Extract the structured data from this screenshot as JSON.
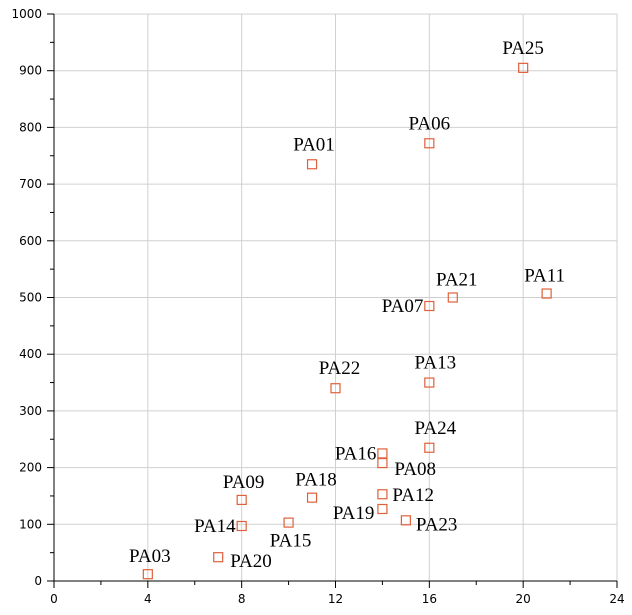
{
  "chart_data": {
    "type": "scatter",
    "title": "",
    "xlabel": "",
    "ylabel": "",
    "xlim": [
      0,
      24
    ],
    "ylim": [
      0,
      1000
    ],
    "x_ticks": [
      "0",
      "4",
      "8",
      "12",
      "16",
      "20",
      "24"
    ],
    "y_ticks": [
      "0",
      "100",
      "200",
      "300",
      "400",
      "500",
      "600",
      "700",
      "800",
      "900",
      "1000"
    ],
    "grid": true,
    "marker": "open-square",
    "marker_color": "#e0603a",
    "points": [
      {
        "label": "PA25",
        "x": 20,
        "y": 905
      },
      {
        "label": "PA06",
        "x": 16,
        "y": 772
      },
      {
        "label": "PA01",
        "x": 11,
        "y": 735
      },
      {
        "label": "PA11",
        "x": 21,
        "y": 507
      },
      {
        "label": "PA21",
        "x": 17,
        "y": 500
      },
      {
        "label": "PA07",
        "x": 16,
        "y": 485
      },
      {
        "label": "PA22",
        "x": 12,
        "y": 340
      },
      {
        "label": "PA13",
        "x": 16,
        "y": 350
      },
      {
        "label": "PA24",
        "x": 16,
        "y": 235
      },
      {
        "label": "PA16",
        "x": 14,
        "y": 225
      },
      {
        "label": "PA08",
        "x": 14,
        "y": 208
      },
      {
        "label": "PA09",
        "x": 8,
        "y": 143
      },
      {
        "label": "PA18",
        "x": 11,
        "y": 147
      },
      {
        "label": "PA12",
        "x": 14,
        "y": 153
      },
      {
        "label": "PA19",
        "x": 14,
        "y": 127
      },
      {
        "label": "PA23",
        "x": 15,
        "y": 107
      },
      {
        "label": "PA14",
        "x": 8,
        "y": 97
      },
      {
        "label": "PA15",
        "x": 10,
        "y": 103
      },
      {
        "label": "PA20",
        "x": 7,
        "y": 42
      },
      {
        "label": "PA03",
        "x": 4,
        "y": 12
      }
    ]
  }
}
